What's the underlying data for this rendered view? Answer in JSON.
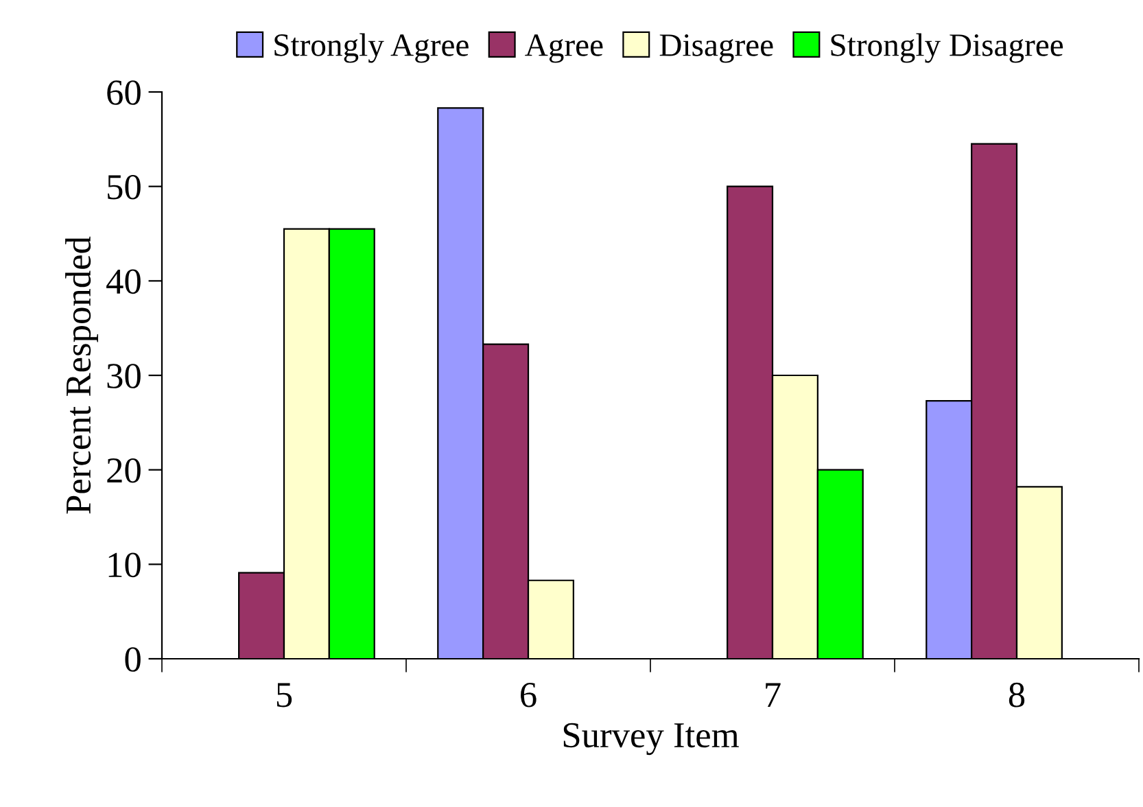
{
  "chart_data": {
    "type": "bar",
    "xlabel": "Survey Item",
    "ylabel": "Percent Responded",
    "categories": [
      "5",
      "6",
      "7",
      "8"
    ],
    "series": [
      {
        "name": "Strongly Agree",
        "color": "#9999ff",
        "values": [
          null,
          58.3,
          null,
          27.3
        ]
      },
      {
        "name": "Agree",
        "color": "#993366",
        "values": [
          9.1,
          33.3,
          50,
          54.5
        ]
      },
      {
        "name": "Disagree",
        "color": "#ffffcc",
        "values": [
          45.5,
          8.3,
          30,
          18.2
        ]
      },
      {
        "name": "Strongly Disagree",
        "color": "#00ff00",
        "values": [
          45.5,
          null,
          20,
          null
        ]
      }
    ],
    "ylim": [
      0,
      60
    ],
    "yticks": [
      0,
      10,
      20,
      30,
      40,
      50,
      60
    ],
    "grid": false,
    "legend": "top"
  }
}
